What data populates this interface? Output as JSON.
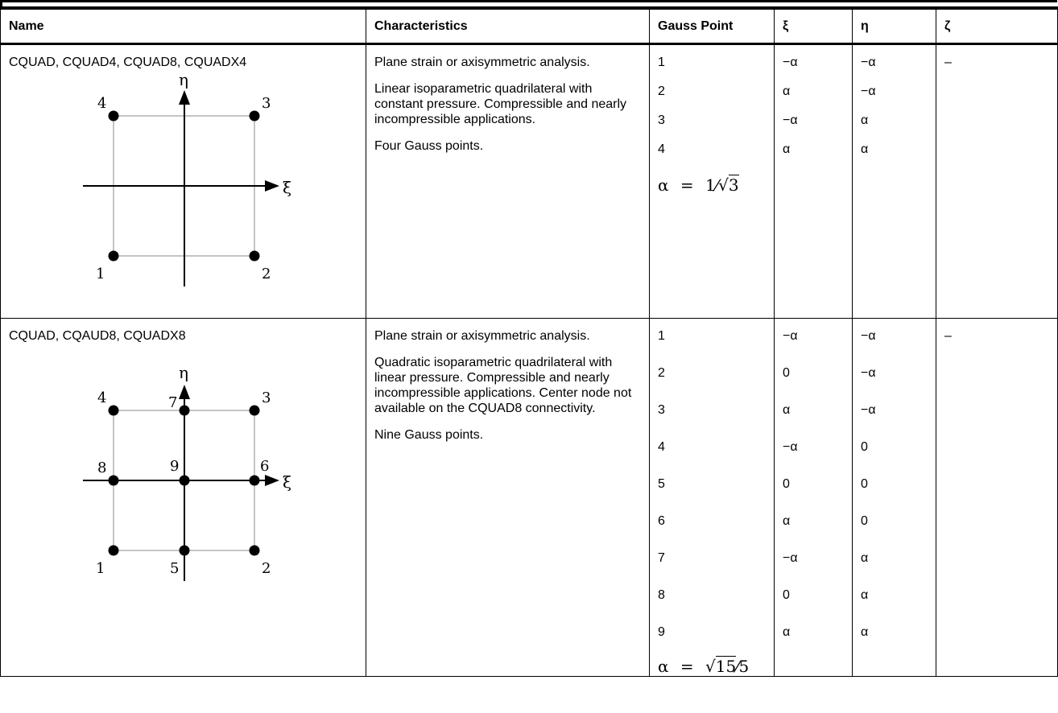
{
  "table": {
    "headers": [
      "Name",
      "Characteristics",
      "Gauss Point",
      "ξ",
      "η",
      "ζ"
    ],
    "rows": [
      {
        "name": "CQUAD, CQUAD4, CQUAD8, CQUADX4",
        "characteristics": [
          "Plane strain or axisymmetric analysis.",
          "Linear isoparametric quadrilateral with constant pressure. Compressible and nearly incompressible applications.",
          "Four Gauss points."
        ],
        "gauss_points": [
          "1",
          "2",
          "3",
          "4"
        ],
        "xi": [
          "−α",
          "α",
          "−α",
          "α"
        ],
        "eta": [
          "−α",
          "−α",
          "α",
          "α"
        ],
        "zeta": [
          "–"
        ],
        "alpha_lhs": "α",
        "alpha_eq": "=",
        "alpha_num": "1",
        "alpha_div": "⁄",
        "alpha_rad": "3",
        "diagram": {
          "axis_eta": "η",
          "axis_xi": "ξ",
          "nodes": [
            "1",
            "2",
            "3",
            "4"
          ]
        }
      },
      {
        "name": "CQUAD, CQAUD8, CQUADX8",
        "characteristics": [
          "Plane strain or axisymmetric analysis.",
          "Quadratic isoparametric quadrilateral with linear pressure. Compressible and nearly incompressible applications. Center node not available on the CQUAD8 connectivity.",
          "Nine Gauss points."
        ],
        "gauss_points": [
          "1",
          "2",
          "3",
          "4",
          "5",
          "6",
          "7",
          "8",
          "9"
        ],
        "xi": [
          "−α",
          "0",
          "α",
          "−α",
          "0",
          "α",
          "−α",
          "0",
          "α"
        ],
        "eta": [
          "−α",
          "−α",
          "−α",
          "0",
          "0",
          "0",
          "α",
          "α",
          "α"
        ],
        "zeta": [
          "–"
        ],
        "alpha_lhs": "α",
        "alpha_eq": "=",
        "alpha_rad": "15",
        "alpha_div": "⁄",
        "alpha_den": "5",
        "diagram": {
          "axis_eta": "η",
          "axis_xi": "ξ",
          "nodes": [
            "1",
            "2",
            "3",
            "4",
            "5",
            "6",
            "7",
            "8",
            "9"
          ]
        }
      }
    ]
  }
}
